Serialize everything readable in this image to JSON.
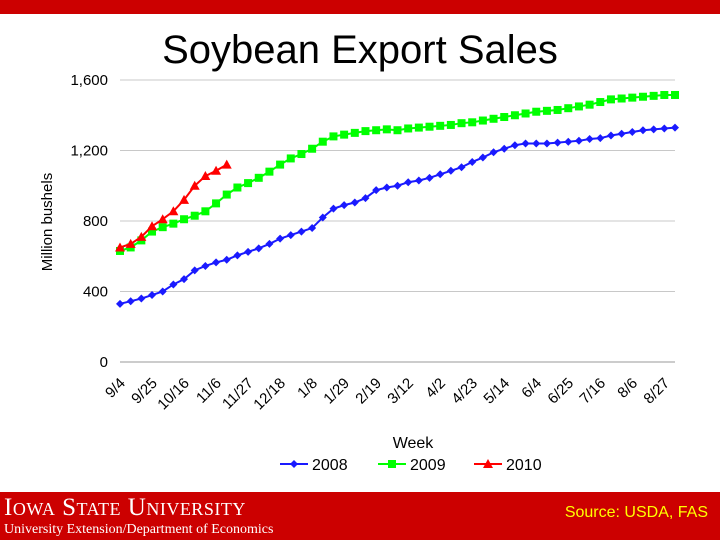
{
  "slide": {
    "title": "Soybean Export Sales",
    "footer_university": "Iowa State University",
    "footer_department": "University Extension/Department of Economics",
    "footer_source": "Source: USDA, FAS"
  },
  "colors": {
    "accent_red": "#cc0000",
    "series_2008": "#1a1aff",
    "series_2009": "#00ff00",
    "series_2010": "#ff0000",
    "source_text": "#ffff00"
  },
  "chart_data": {
    "type": "line",
    "title": "Soybean Export Sales",
    "xlabel": "Week",
    "ylabel": "Million bushels",
    "ylim": [
      0,
      1600
    ],
    "yticks": [
      0,
      400,
      800,
      1200,
      1600
    ],
    "ytick_labels": [
      "0",
      "400",
      "800",
      "1,200",
      "1,600"
    ],
    "xtick_labels": [
      "9/4",
      "9/25",
      "10/16",
      "11/6",
      "11/27",
      "12/18",
      "1/8",
      "1/29",
      "2/19",
      "3/12",
      "4/2",
      "4/23",
      "5/14",
      "6/4",
      "6/25",
      "7/16",
      "8/6",
      "8/27"
    ],
    "n_weeks": 53,
    "legend": "bottom",
    "series": [
      {
        "name": "2008",
        "marker": "diamond",
        "values": [
          330,
          345,
          360,
          380,
          400,
          440,
          470,
          520,
          545,
          565,
          580,
          605,
          625,
          645,
          670,
          700,
          720,
          740,
          760,
          820,
          870,
          890,
          905,
          930,
          975,
          990,
          1000,
          1020,
          1030,
          1045,
          1065,
          1085,
          1105,
          1135,
          1160,
          1190,
          1210,
          1230,
          1240,
          1240,
          1240,
          1245,
          1250,
          1255,
          1265,
          1270,
          1285,
          1295,
          1305,
          1315,
          1320,
          1325,
          1330
        ]
      },
      {
        "name": "2009",
        "marker": "square",
        "values": [
          630,
          650,
          690,
          740,
          765,
          785,
          810,
          830,
          855,
          900,
          950,
          990,
          1015,
          1045,
          1080,
          1120,
          1155,
          1180,
          1210,
          1250,
          1280,
          1290,
          1300,
          1310,
          1315,
          1320,
          1315,
          1325,
          1330,
          1335,
          1340,
          1345,
          1355,
          1360,
          1370,
          1380,
          1390,
          1400,
          1410,
          1420,
          1425,
          1430,
          1440,
          1450,
          1460,
          1475,
          1490,
          1495,
          1500,
          1505,
          1510,
          1515,
          1515
        ]
      },
      {
        "name": "2010",
        "marker": "triangle",
        "values": [
          650,
          670,
          710,
          770,
          810,
          855,
          920,
          1000,
          1055,
          1085,
          1120
        ]
      }
    ]
  }
}
